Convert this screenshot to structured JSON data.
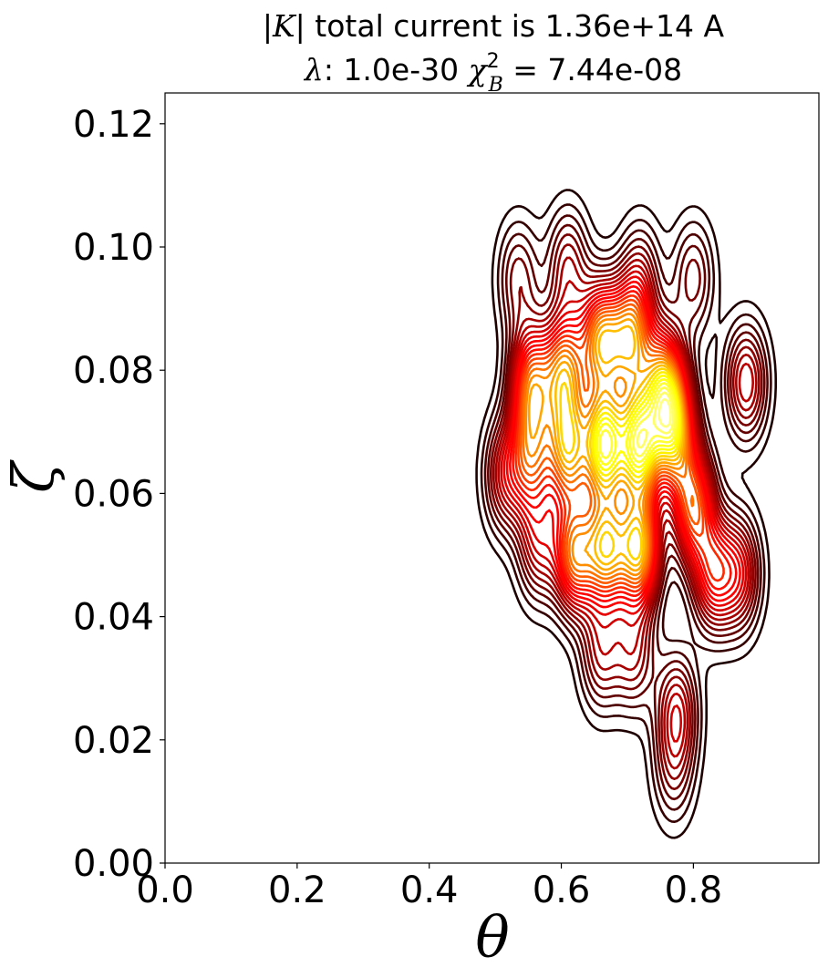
{
  "chart_data": {
    "type": "contour",
    "title_line1": "|K| total current is 1.36e+14 A",
    "title_line2": "λ: 1.0e-30 χ²_B = 7.44e-08",
    "title_parts": {
      "l1_bar_open": "|",
      "l1_K": "K",
      "l1_rest": "| total current is 1.36e+14 A",
      "l2_lambda": "λ",
      "l2_mid": ": 1.0e-30 ",
      "l2_chi": "χ",
      "l2_sup": "2",
      "l2_sub": "B",
      "l2_tail": " = 7.44e-08"
    },
    "xlabel": "θ",
    "ylabel": "ζ",
    "xlim": [
      0.0,
      0.99
    ],
    "ylim": [
      0.0,
      0.125
    ],
    "xticks": [
      0.0,
      0.2,
      0.4,
      0.6,
      0.8
    ],
    "xtick_labels": [
      "0.0",
      "0.2",
      "0.4",
      "0.6",
      "0.8"
    ],
    "yticks": [
      0.0,
      0.02,
      0.04,
      0.06,
      0.08,
      0.1,
      0.12
    ],
    "ytick_labels": [
      "0.00",
      "0.02",
      "0.04",
      "0.06",
      "0.08",
      "0.10",
      "0.12"
    ],
    "grid": false,
    "colormap": "hot",
    "levels": 28,
    "colors": {
      "low": "#1a0000",
      "mid": "#d01800",
      "high": "#ffff60"
    },
    "peaks": [
      {
        "theta": 0.665,
        "zeta": 0.068,
        "amp": 1.0
      },
      {
        "theta": 0.718,
        "zeta": 0.068,
        "amp": 1.0
      },
      {
        "theta": 0.61,
        "zeta": 0.067,
        "amp": 0.75
      },
      {
        "theta": 0.555,
        "zeta": 0.066,
        "amp": 0.55
      },
      {
        "theta": 0.62,
        "zeta": 0.05,
        "amp": 0.7
      },
      {
        "theta": 0.668,
        "zeta": 0.051,
        "amp": 0.78
      },
      {
        "theta": 0.718,
        "zeta": 0.051,
        "amp": 0.85
      },
      {
        "theta": 0.77,
        "zeta": 0.07,
        "amp": 0.78
      },
      {
        "theta": 0.8,
        "zeta": 0.058,
        "amp": 0.65
      },
      {
        "theta": 0.83,
        "zeta": 0.047,
        "amp": 0.5
      },
      {
        "theta": 0.755,
        "zeta": 0.078,
        "amp": 0.7
      },
      {
        "theta": 0.555,
        "zeta": 0.078,
        "amp": 0.65
      },
      {
        "theta": 0.605,
        "zeta": 0.08,
        "amp": 0.7
      },
      {
        "theta": 0.66,
        "zeta": 0.085,
        "amp": 0.75
      },
      {
        "theta": 0.705,
        "zeta": 0.085,
        "amp": 0.7
      },
      {
        "theta": 0.88,
        "zeta": 0.078,
        "amp": 0.4
      },
      {
        "theta": 0.87,
        "zeta": 0.047,
        "amp": 0.4
      },
      {
        "theta": 0.515,
        "zeta": 0.063,
        "amp": 0.35
      },
      {
        "theta": 0.565,
        "zeta": 0.052,
        "amp": 0.35
      },
      {
        "theta": 0.61,
        "zeta": 0.097,
        "amp": 0.3
      },
      {
        "theta": 0.535,
        "zeta": 0.095,
        "amp": 0.25
      },
      {
        "theta": 0.72,
        "zeta": 0.095,
        "amp": 0.25
      },
      {
        "theta": 0.8,
        "zeta": 0.095,
        "amp": 0.25
      },
      {
        "theta": 0.66,
        "zeta": 0.034,
        "amp": 0.3
      },
      {
        "theta": 0.71,
        "zeta": 0.034,
        "amp": 0.3
      },
      {
        "theta": 0.775,
        "zeta": 0.025,
        "amp": 0.35
      },
      {
        "theta": 0.77,
        "zeta": 0.015,
        "amp": 0.2
      }
    ]
  }
}
